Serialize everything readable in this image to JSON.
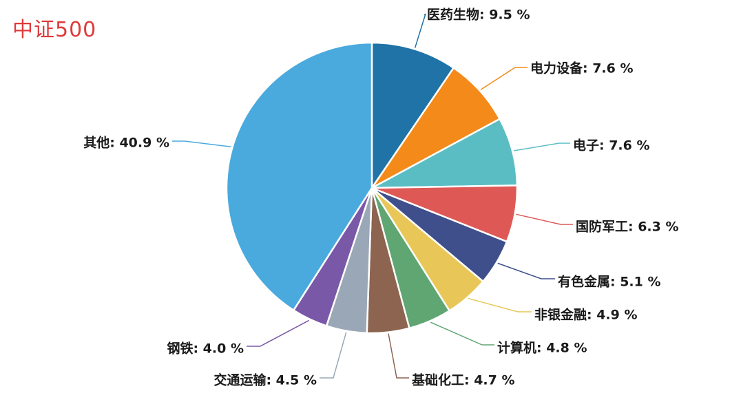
{
  "chart_data": {
    "type": "pie",
    "title": "中证500",
    "slices": [
      {
        "label": "医药生物",
        "value": 9.5,
        "display": "医药生物: 9.5 %",
        "color": "#1f73a6"
      },
      {
        "label": "电力设备",
        "value": 7.6,
        "display": "电力设备: 7.6 %",
        "color": "#f38a1a"
      },
      {
        "label": "电子",
        "value": 7.6,
        "display": "电子: 7.6 %",
        "color": "#5bbdc4"
      },
      {
        "label": "国防军工",
        "value": 6.3,
        "display": "国防军工: 6.3 %",
        "color": "#de5956"
      },
      {
        "label": "有色金属",
        "value": 5.1,
        "display": "有色金属: 5.1 %",
        "color": "#3e4f8b"
      },
      {
        "label": "非银金融",
        "value": 4.9,
        "display": "非银金融: 4.9 %",
        "color": "#e8c758"
      },
      {
        "label": "计算机",
        "value": 4.8,
        "display": "计算机: 4.8 %",
        "color": "#5fa672"
      },
      {
        "label": "基础化工",
        "value": 4.7,
        "display": "基础化工: 4.7 %",
        "color": "#8c6450"
      },
      {
        "label": "交通运输",
        "value": 4.5,
        "display": "交通运输: 4.5 %",
        "color": "#9aa7b6"
      },
      {
        "label": "钢铁",
        "value": 4.0,
        "display": "钢铁: 4.0 %",
        "color": "#7a58a8"
      },
      {
        "label": "其他",
        "value": 40.9,
        "display": "其他: 40.9 %",
        "color": "#4aa9dd"
      }
    ]
  }
}
